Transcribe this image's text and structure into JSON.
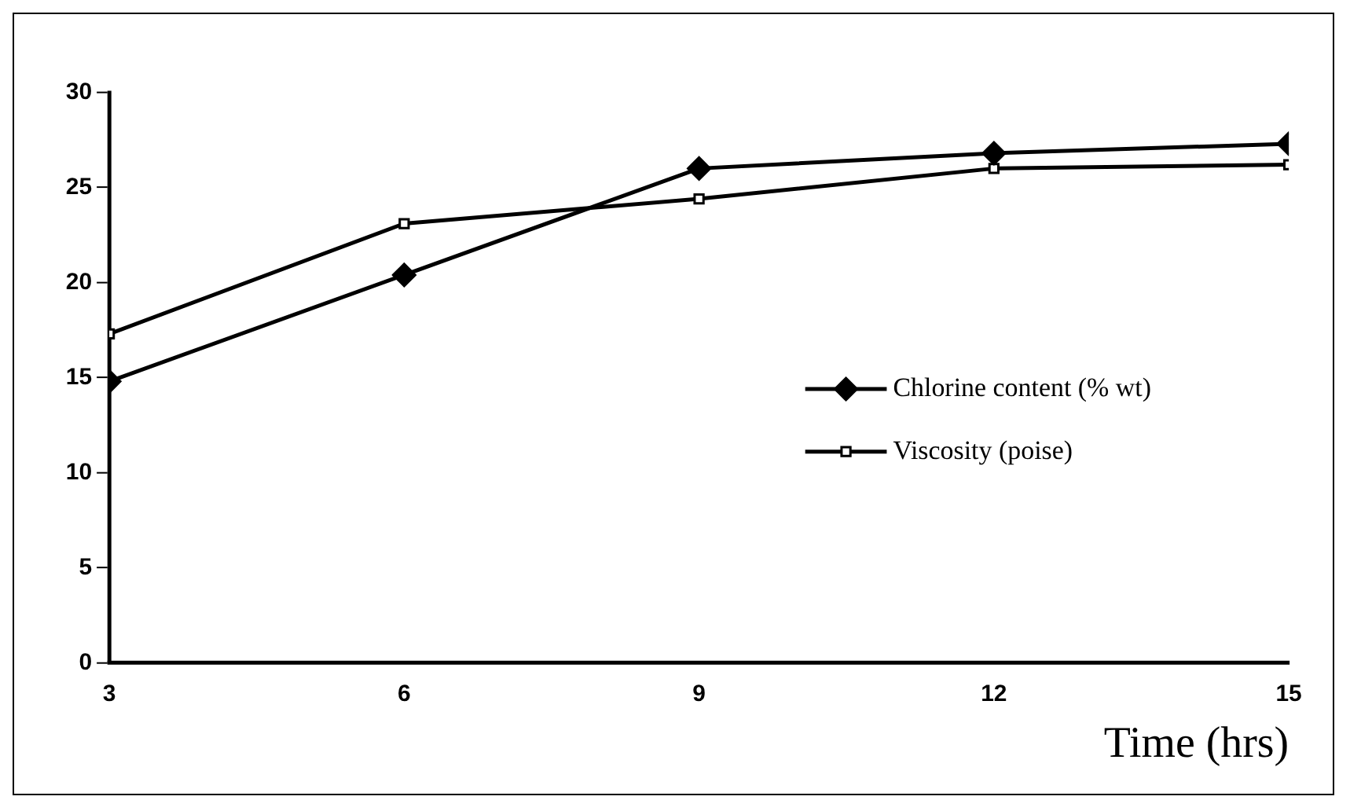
{
  "chart_data": {
    "type": "line",
    "xlabel": "Time (hrs)",
    "x": [
      3,
      6,
      9,
      12,
      15
    ],
    "series": [
      {
        "name": "Chlorine content (% wt)",
        "color": "#000000",
        "marker": "diamond",
        "values": [
          14.8,
          20.4,
          26.0,
          26.8,
          27.3
        ]
      },
      {
        "name": "Viscosity (poise)",
        "color": "#000000",
        "marker": "square",
        "values": [
          17.3,
          23.1,
          24.4,
          26.0,
          26.2
        ]
      }
    ],
    "xlim": [
      3,
      15
    ],
    "xticks": [
      3,
      6,
      9,
      12,
      15
    ],
    "ylim": [
      0,
      30
    ],
    "yticks": [
      0,
      5,
      10,
      15,
      20,
      25,
      30
    ],
    "grid": false,
    "legend": "right",
    "line_style": "solid"
  }
}
